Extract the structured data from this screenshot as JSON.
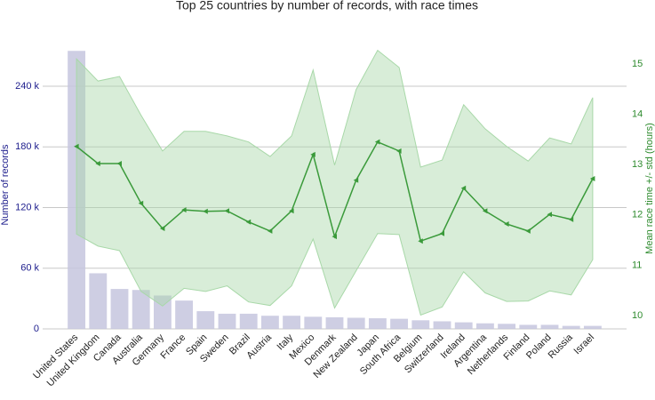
{
  "chart_data": {
    "type": "bar_line",
    "title": "Top 25 countries by number of records, with race times",
    "ylabel": "Number of records",
    "y2label": "Mean race time +/- std (hours)",
    "categories": [
      "United States",
      "United Kingdom",
      "Canada",
      "Australia",
      "Germany",
      "France",
      "Spain",
      "Sweden",
      "Brazil",
      "Austria",
      "Italy",
      "Mexico",
      "Denmark",
      "New Zealand",
      "Japan",
      "South Africa",
      "Belgium",
      "Switzerland",
      "Ireland",
      "Argentina",
      "Netherlands",
      "Finland",
      "Poland",
      "Russia",
      "Israel"
    ],
    "series": [
      {
        "type": "bar",
        "axis": "y",
        "color": "#c5c5de",
        "values": [
          275000,
          55000,
          39500,
          38500,
          33000,
          28000,
          17500,
          15000,
          15000,
          13000,
          13000,
          12000,
          11500,
          11000,
          10500,
          10000,
          8500,
          7500,
          6500,
          5500,
          5000,
          4000,
          4000,
          3000,
          3000
        ]
      },
      {
        "type": "line",
        "axis": "y2",
        "color": "#3a9a3a",
        "band_color": "#a8d8a8",
        "values": [
          13.36,
          13.02,
          13.02,
          12.23,
          11.73,
          12.1,
          12.07,
          12.08,
          11.86,
          11.68,
          12.08,
          13.2,
          11.57,
          12.69,
          13.45,
          13.27,
          11.48,
          11.63,
          12.53,
          12.08,
          11.82,
          11.68,
          12.01,
          11.91,
          12.72
        ],
        "std": [
          1.74,
          1.64,
          1.73,
          1.75,
          1.54,
          1.56,
          1.59,
          1.49,
          1.59,
          1.48,
          1.49,
          1.68,
          1.42,
          1.8,
          1.82,
          1.66,
          1.47,
          1.46,
          1.66,
          1.63,
          1.54,
          1.39,
          1.52,
          1.5,
          1.61
        ]
      }
    ],
    "ylim": [
      0,
      284000
    ],
    "yticks": [
      0,
      {
        "value": 60000,
        "label": "60 k"
      },
      {
        "value": 120000,
        "label": "120 k"
      },
      {
        "value": 180000,
        "label": "180 k"
      },
      {
        "value": 240000,
        "label": "240 k"
      }
    ],
    "y2lim": [
      9.735,
      15.44
    ],
    "y2ticks": [
      10,
      11,
      12,
      13,
      14,
      15
    ],
    "ycolor": "#1c1c8c",
    "y2color": "#2e8b2e",
    "grid": true
  }
}
